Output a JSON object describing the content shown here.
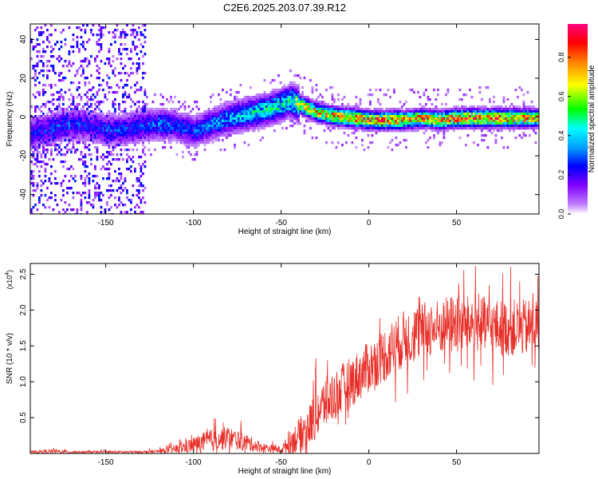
{
  "chart_data": [
    {
      "type": "heatmap",
      "title": "C2E6.2025.203.07.39.R12",
      "xlabel": "Height of straight line (km)",
      "ylabel": "Frequency (Hz)",
      "xlim": [
        -193,
        97
      ],
      "ylim": [
        -50,
        48
      ],
      "xticks": [
        -150,
        -100,
        -50,
        0,
        50
      ],
      "yticks": [
        -40,
        -20,
        0,
        20,
        40
      ],
      "colorbar": {
        "label": "Normalized spectral amplitude",
        "range": [
          0.0,
          0.97
        ],
        "ticks": [
          "0.0",
          "0.2",
          "0.4",
          "0.6",
          "0.8"
        ],
        "colors": [
          "#ffffff",
          "#c080ff",
          "#8000ff",
          "#0000ff",
          "#00a0ff",
          "#00ffff",
          "#00ff00",
          "#ffff00",
          "#ff8000",
          "#ff0000",
          "#ff0080"
        ]
      },
      "ridge": {
        "x": [
          -193,
          -180,
          -170,
          -160,
          -150,
          -140,
          -130,
          -120,
          -110,
          -100,
          -90,
          -80,
          -70,
          -60,
          -50,
          -45,
          -40,
          -35,
          -30,
          -20,
          -10,
          0,
          10,
          20,
          30,
          40,
          50,
          60,
          70,
          80,
          90,
          97
        ],
        "y": [
          -8,
          -5,
          -3,
          -4,
          -6,
          -6,
          -4,
          -3,
          -4,
          -7,
          -3,
          0,
          2,
          4,
          7,
          9,
          7,
          5,
          3,
          1,
          0,
          -1,
          -1,
          -1,
          0,
          -1,
          0,
          0,
          0,
          0,
          0,
          0
        ],
        "peak_amplitude": [
          0.25,
          0.3,
          0.3,
          0.25,
          0.3,
          0.3,
          0.3,
          0.35,
          0.3,
          0.3,
          0.35,
          0.4,
          0.45,
          0.5,
          0.5,
          0.55,
          0.75,
          0.8,
          0.8,
          0.85,
          0.9,
          0.9,
          0.9,
          0.9,
          0.85,
          0.9,
          0.9,
          0.95,
          0.95,
          0.9,
          0.85,
          0.8
        ]
      }
    },
    {
      "type": "line",
      "xlabel": "Height of straight line (km)",
      "ylabel": "SNR (10 * v/v)",
      "y_multiplier": "(x10",
      "y_multiplier_exp": "4",
      "y_multiplier_close": ")",
      "xlim": [
        -193,
        97
      ],
      "ylim": [
        0,
        2.65
      ],
      "xticks": [
        -150,
        -100,
        -50,
        0,
        50
      ],
      "yticks": [
        0.5,
        1.0,
        1.5,
        2.0,
        2.5
      ],
      "series": [
        {
          "color": "#e8302a",
          "x": [
            -193,
            -180,
            -170,
            -160,
            -150,
            -140,
            -130,
            -120,
            -110,
            -100,
            -90,
            -80,
            -70,
            -60,
            -50,
            -45,
            -40,
            -35,
            -30,
            -25,
            -20,
            -15,
            -10,
            -5,
            0,
            5,
            10,
            15,
            20,
            25,
            30,
            35,
            40,
            45,
            50,
            55,
            60,
            65,
            70,
            75,
            80,
            85,
            90,
            97
          ],
          "mean": [
            0.02,
            0.03,
            0.02,
            0.02,
            0.02,
            0.02,
            0.02,
            0.03,
            0.06,
            0.12,
            0.18,
            0.22,
            0.15,
            0.08,
            0.05,
            0.15,
            0.25,
            0.35,
            0.55,
            0.7,
            0.8,
            0.9,
            1.0,
            1.1,
            1.2,
            1.3,
            1.4,
            1.5,
            1.6,
            1.65,
            1.7,
            1.75,
            1.75,
            1.8,
            1.8,
            1.8,
            1.8,
            1.8,
            1.75,
            1.75,
            1.75,
            1.75,
            1.75,
            1.8
          ],
          "spread": [
            0.02,
            0.04,
            0.02,
            0.02,
            0.02,
            0.02,
            0.02,
            0.03,
            0.08,
            0.14,
            0.2,
            0.2,
            0.15,
            0.08,
            0.06,
            0.2,
            0.3,
            0.35,
            0.45,
            0.45,
            0.45,
            0.45,
            0.45,
            0.45,
            0.45,
            0.45,
            0.5,
            0.5,
            0.5,
            0.5,
            0.5,
            0.5,
            0.5,
            0.5,
            0.55,
            0.5,
            0.5,
            0.5,
            0.5,
            0.5,
            0.5,
            0.5,
            0.5,
            0.5
          ]
        }
      ]
    }
  ]
}
